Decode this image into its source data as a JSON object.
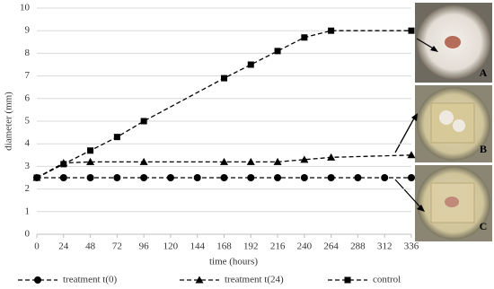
{
  "chart_data": {
    "type": "line",
    "x_label": "time (hours)",
    "y_label": "diameter (mm)",
    "xlim": [
      0,
      336
    ],
    "xticks": [
      0,
      24,
      48,
      72,
      96,
      120,
      144,
      168,
      192,
      216,
      240,
      264,
      288,
      312,
      336
    ],
    "ylim": [
      0,
      10
    ],
    "yticks": [
      0,
      1,
      2,
      3,
      4,
      5,
      6,
      7,
      8,
      9,
      10
    ],
    "grid": true,
    "legend": "bottom",
    "series": [
      {
        "name": "treatment t(0)",
        "color": "#000000",
        "marker": "circle",
        "x": [
          0,
          24,
          48,
          72,
          96,
          120,
          144,
          168,
          192,
          216,
          240,
          264,
          288,
          312,
          336
        ],
        "values": [
          2.5,
          2.5,
          2.5,
          2.5,
          2.5,
          2.5,
          2.5,
          2.5,
          2.5,
          2.5,
          2.5,
          2.5,
          2.5,
          2.5,
          2.5
        ]
      },
      {
        "name": "treatment t(24)",
        "color": "#000000",
        "marker": "triangle",
        "x": [
          0,
          24,
          48,
          96,
          168,
          192,
          216,
          240,
          264,
          336
        ],
        "values": [
          2.5,
          3.15,
          3.2,
          3.2,
          3.2,
          3.2,
          3.2,
          3.3,
          3.4,
          3.5
        ]
      },
      {
        "name": "control",
        "color": "#000000",
        "marker": "square",
        "x": [
          0,
          24,
          48,
          72,
          96,
          168,
          192,
          216,
          240,
          264,
          336
        ],
        "values": [
          2.5,
          3.1,
          3.7,
          4.3,
          5.0,
          6.9,
          7.5,
          8.1,
          8.7,
          9.0,
          9.0
        ]
      }
    ],
    "annotations": [
      "A",
      "B",
      "C"
    ]
  }
}
